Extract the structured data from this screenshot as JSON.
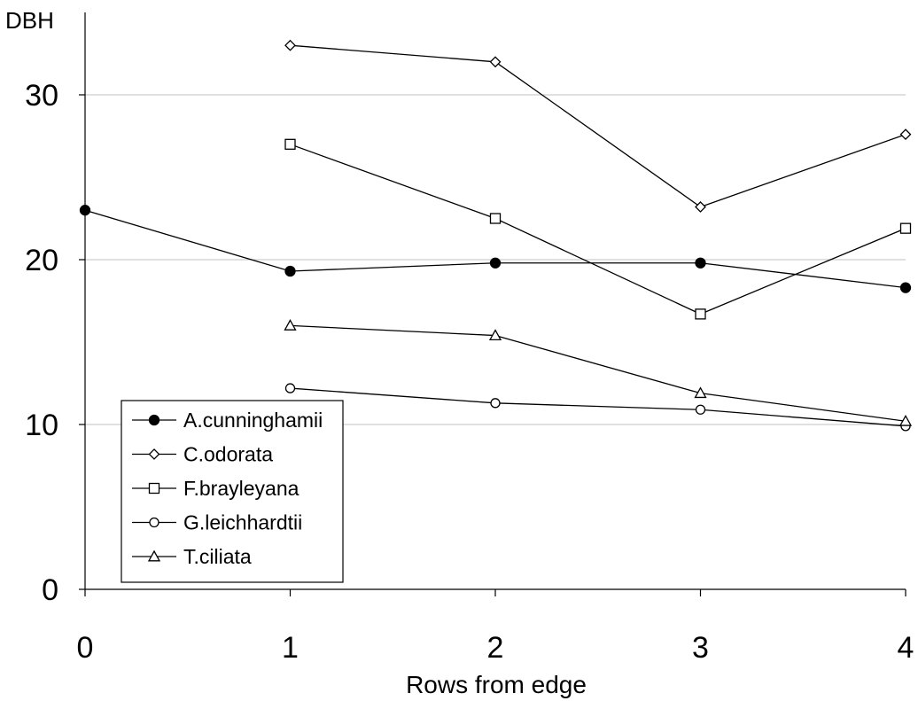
{
  "chart_data": {
    "type": "line",
    "title": "",
    "xlabel": "Rows from edge",
    "ylabel": "DBH",
    "xlim": [
      0,
      4
    ],
    "ylim": [
      0,
      35
    ],
    "x_ticks": [
      "0",
      "1",
      "2",
      "3",
      "4"
    ],
    "y_ticks": [
      "0",
      "10",
      "20",
      "30"
    ],
    "y_tick_values": [
      0,
      10,
      20,
      30
    ],
    "grid": "horizontal at 10, 20, 30",
    "legend_position": "lower-left",
    "series": [
      {
        "name": "A.cunninghamii",
        "marker": "filled-circle",
        "x": [
          0,
          1,
          2,
          3,
          4
        ],
        "y": [
          23.0,
          19.3,
          19.8,
          19.8,
          18.3
        ]
      },
      {
        "name": "C.odorata",
        "marker": "diamond",
        "x": [
          1,
          2,
          3,
          4
        ],
        "y": [
          33.0,
          32.0,
          23.2,
          27.6
        ]
      },
      {
        "name": "F.brayleyana",
        "marker": "square",
        "x": [
          1,
          2,
          3,
          4
        ],
        "y": [
          27.0,
          22.5,
          16.7,
          21.9
        ]
      },
      {
        "name": "G.leichhardtii",
        "marker": "circle",
        "x": [
          1,
          2,
          3,
          4
        ],
        "y": [
          12.2,
          11.3,
          10.9,
          9.9
        ]
      },
      {
        "name": "T.ciliata",
        "marker": "triangle",
        "x": [
          1,
          2,
          3,
          4
        ],
        "y": [
          16.0,
          15.4,
          11.9,
          10.2
        ]
      }
    ]
  }
}
